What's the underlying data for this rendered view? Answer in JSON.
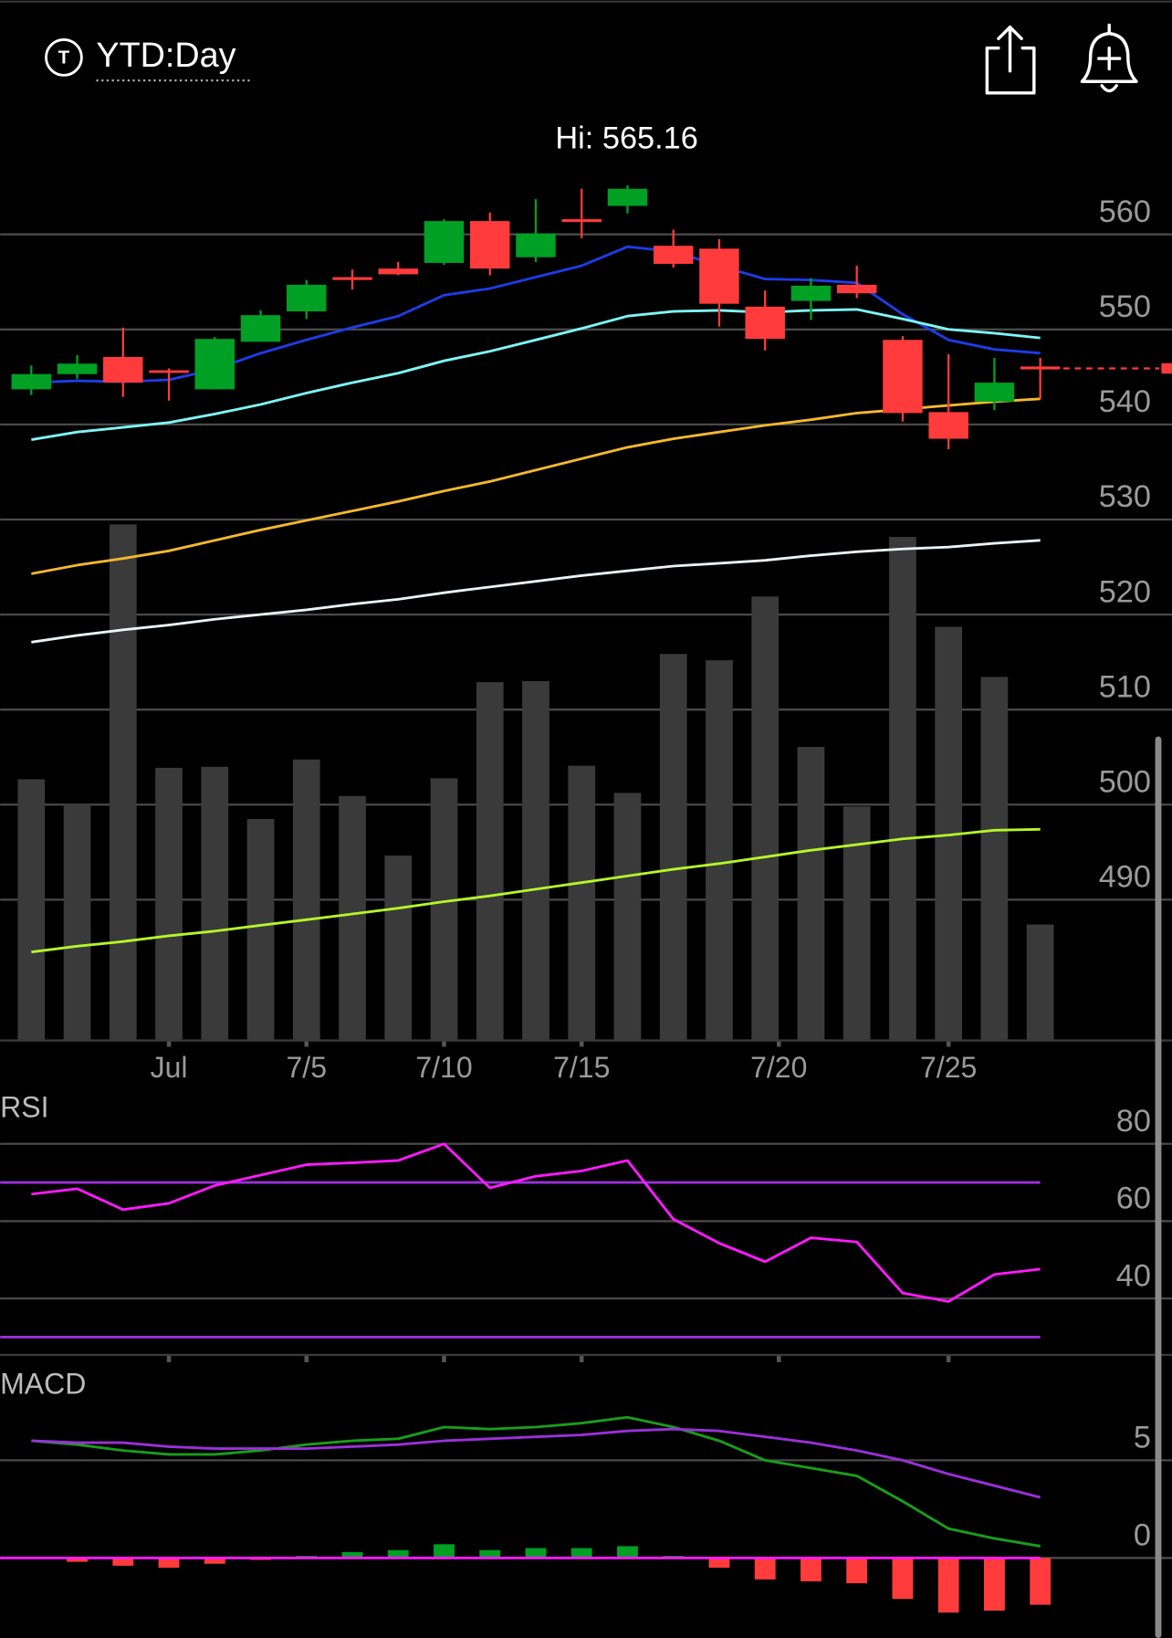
{
  "header": {
    "icon_label": "T",
    "title": "YTD:Day"
  },
  "chart_data": [
    {
      "type": "candlestick",
      "annotation": "Hi: 565.16",
      "open": [
        543.7,
        545.3,
        547.1,
        545.7,
        543.7,
        548.7,
        551.9,
        555.5,
        556.4,
        557.0,
        561.4,
        557.6,
        561.6,
        563.0,
        558.8,
        558.5,
        552.4,
        553.0,
        554.7,
        548.9,
        541.3,
        542.4,
        546.1
      ],
      "high": [
        546.2,
        547.3,
        550.2,
        545.9,
        549.2,
        552.0,
        555.2,
        556.3,
        557.1,
        561.6,
        562.3,
        563.7,
        564.8,
        565.16,
        560.5,
        559.5,
        554.1,
        555.4,
        556.7,
        549.3,
        547.4,
        547.0,
        547.0
      ],
      "low": [
        543.1,
        544.8,
        542.9,
        542.5,
        543.7,
        548.7,
        551.1,
        554.2,
        555.7,
        556.8,
        555.7,
        557.1,
        559.6,
        562.2,
        556.5,
        550.3,
        547.8,
        551.0,
        553.3,
        540.3,
        537.4,
        541.5,
        542.7
      ],
      "close": [
        545.3,
        546.4,
        544.4,
        545.5,
        549.0,
        551.5,
        554.7,
        555.2,
        555.8,
        561.4,
        556.4,
        560.1,
        561.3,
        564.8,
        556.9,
        552.7,
        549.0,
        554.6,
        553.8,
        541.2,
        538.5,
        544.4,
        545.8
      ],
      "up_color": "#00a024",
      "down_color": "#ff3b3b",
      "last_price": 545.9,
      "series": [
        {
          "color": "#1e3ce6",
          "values": [
            544.4,
            544.6,
            544.5,
            544.7,
            545.8,
            547.5,
            548.9,
            550.2,
            551.4,
            553.6,
            554.3,
            555.5,
            556.7,
            558.7,
            558.2,
            556.7,
            555.3,
            555.2,
            554.9,
            551.6,
            548.9,
            547.9,
            547.5
          ]
        },
        {
          "color": "#7ff5f5",
          "values": [
            538.4,
            539.2,
            539.7,
            540.2,
            541.1,
            542.1,
            543.3,
            544.4,
            545.4,
            546.7,
            547.7,
            548.9,
            550.1,
            551.4,
            551.9,
            552.0,
            551.8,
            552.0,
            552.1,
            551.1,
            550.0,
            549.6,
            549.1
          ]
        },
        {
          "color": "#f5b82e",
          "values": [
            524.3,
            525.2,
            525.9,
            526.7,
            527.8,
            528.9,
            529.9,
            530.9,
            531.9,
            533.0,
            534.0,
            535.2,
            536.4,
            537.6,
            538.5,
            539.2,
            539.9,
            540.5,
            541.2,
            541.6,
            542.0,
            542.4,
            542.7
          ]
        },
        {
          "color": "#e8f4f4",
          "values": [
            517.1,
            517.8,
            518.4,
            518.9,
            519.5,
            520.0,
            520.5,
            521.1,
            521.6,
            522.3,
            522.9,
            523.5,
            524.1,
            524.6,
            525.1,
            525.4,
            525.7,
            526.2,
            526.6,
            526.9,
            527.1,
            527.5,
            527.8
          ]
        },
        {
          "color": "#b6f52a",
          "values": [
            484.5,
            485.1,
            485.6,
            486.2,
            486.7,
            487.3,
            487.9,
            488.5,
            489.1,
            489.8,
            490.4,
            491.1,
            491.8,
            492.5,
            493.2,
            493.8,
            494.5,
            495.2,
            495.8,
            496.4,
            496.8,
            497.3,
            497.4
          ]
        }
      ],
      "volume": {
        "color": "#3a3a3a",
        "values": [
          24.9,
          22.5,
          49.3,
          26.0,
          26.1,
          21.1,
          26.8,
          23.3,
          17.6,
          25.0,
          34.2,
          34.3,
          26.2,
          23.6,
          36.9,
          36.3,
          42.4,
          28.0,
          22.3,
          48.1,
          39.5,
          34.7,
          11.0
        ]
      },
      "xlim": [
        -0.68,
        24.87
      ],
      "xticks": [
        {
          "value": 3,
          "label": "Jul"
        },
        {
          "value": 6,
          "label": "7/5"
        },
        {
          "value": 9,
          "label": "7/10"
        },
        {
          "value": 12,
          "label": "7/15"
        },
        {
          "value": 16.3,
          "label": "7/20"
        },
        {
          "value": 20,
          "label": "7/25"
        }
      ],
      "ylim": [
        475.3,
        571.8
      ],
      "yticks": [
        490,
        500,
        510,
        520,
        530,
        540,
        550,
        560
      ]
    },
    {
      "type": "line",
      "title": "RSI",
      "series": [
        {
          "color": "#ff1aff",
          "values": [
            67.0,
            68.4,
            63.0,
            64.6,
            69.2,
            71.9,
            74.6,
            75.1,
            75.7,
            80.0,
            68.6,
            71.6,
            73.0,
            75.7,
            60.5,
            54.3,
            49.5,
            55.7,
            54.6,
            41.4,
            39.2,
            46.2,
            47.6
          ]
        }
      ],
      "levels": [
        70,
        30
      ],
      "level_color": "#9b30d9",
      "ylim": [
        25.4,
        93.5
      ],
      "yticks": [
        40,
        60,
        80
      ]
    },
    {
      "type": "macd",
      "title": "MACD",
      "series": [
        {
          "color": "#1a9e1a",
          "values": [
            6.0,
            5.8,
            5.5,
            5.3,
            5.3,
            5.5,
            5.8,
            6.0,
            6.1,
            6.7,
            6.6,
            6.7,
            6.9,
            7.2,
            6.7,
            6.0,
            5.0,
            4.6,
            4.2,
            2.9,
            1.5,
            1.0,
            0.6
          ]
        },
        {
          "color": "#9b30d9",
          "values": [
            6.0,
            5.9,
            5.9,
            5.7,
            5.6,
            5.6,
            5.6,
            5.7,
            5.8,
            6.0,
            6.1,
            6.2,
            6.3,
            6.5,
            6.6,
            6.5,
            6.2,
            5.9,
            5.5,
            5.0,
            4.3,
            3.7,
            3.1
          ]
        }
      ],
      "histogram": {
        "up_color": "#00a024",
        "down_color": "#ff3b3b",
        "values": [
          0,
          -0.2,
          -0.4,
          -0.5,
          -0.3,
          -0.1,
          0.1,
          0.3,
          0.4,
          0.7,
          0.4,
          0.5,
          0.5,
          0.6,
          0.1,
          -0.5,
          -1.1,
          -1.2,
          -1.3,
          -2.1,
          -2.8,
          -2.7,
          -2.4
        ]
      },
      "ylim": [
        -4.1,
        9.7
      ],
      "yticks": [
        0,
        5
      ]
    }
  ]
}
